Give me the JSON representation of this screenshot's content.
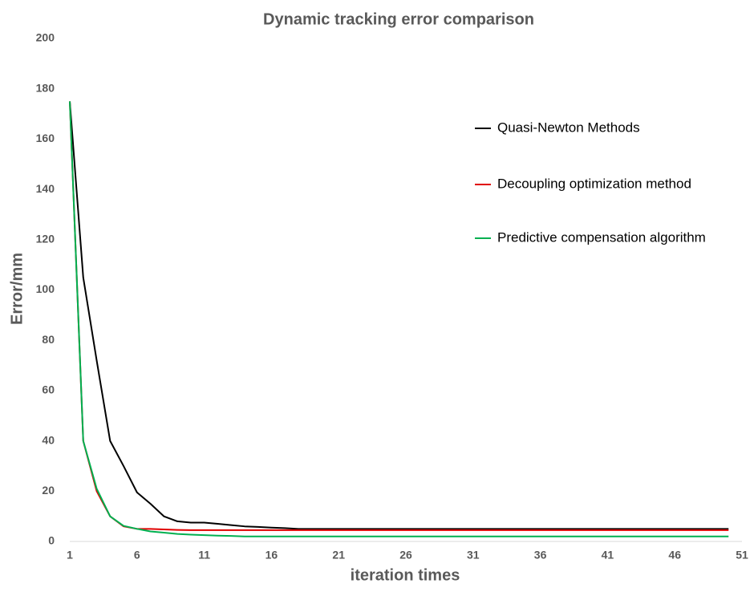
{
  "chart_data": {
    "type": "line",
    "title": "Dynamic tracking error comparison",
    "x_label": "iteration times",
    "y_label": "Error/mm",
    "x": [
      1,
      2,
      3,
      4,
      5,
      6,
      7,
      8,
      9,
      10,
      11,
      12,
      13,
      14,
      15,
      16,
      17,
      18,
      19,
      20,
      21,
      22,
      23,
      24,
      25,
      26,
      27,
      28,
      29,
      30,
      31,
      32,
      33,
      34,
      35,
      36,
      37,
      38,
      39,
      40,
      41,
      42,
      43,
      44,
      45,
      46,
      47,
      48,
      49,
      50
    ],
    "series": [
      {
        "name": "Quasi-Newton Methods",
        "color": "#000000",
        "values": [
          175,
          105,
          72,
          40,
          30,
          19.5,
          15,
          10,
          8,
          7.5,
          7.5,
          7,
          6.5,
          6,
          5.8,
          5.5,
          5.3,
          5,
          5,
          5,
          5,
          5,
          5,
          5,
          5,
          5,
          5,
          5,
          5,
          5,
          5,
          5,
          5,
          5,
          5,
          5,
          5,
          5,
          5,
          5,
          5,
          5,
          5,
          5,
          5,
          5,
          5,
          5,
          5,
          5
        ]
      },
      {
        "name": "Decoupling optimization method",
        "color": "#e00000",
        "values": [
          175,
          40,
          20,
          10,
          6,
          5,
          5,
          4.8,
          4.6,
          4.5,
          4.5,
          4.5,
          4.5,
          4.5,
          4.5,
          4.5,
          4.5,
          4.5,
          4.5,
          4.5,
          4.5,
          4.5,
          4.5,
          4.5,
          4.5,
          4.5,
          4.5,
          4.5,
          4.5,
          4.5,
          4.5,
          4.5,
          4.5,
          4.5,
          4.5,
          4.5,
          4.5,
          4.5,
          4.5,
          4.5,
          4.5,
          4.5,
          4.5,
          4.5,
          4.5,
          4.5,
          4.5,
          4.5,
          4.5,
          4.5
        ]
      },
      {
        "name": "Predictive compensation algorithm",
        "color": "#00b050",
        "values": [
          175,
          40,
          21,
          10,
          6.2,
          5,
          4,
          3.5,
          3,
          2.7,
          2.5,
          2.3,
          2.2,
          2,
          2,
          2,
          2,
          2,
          2,
          2,
          2,
          2,
          2,
          2,
          2,
          2,
          2,
          2,
          2,
          2,
          2,
          2,
          2,
          2,
          2,
          2,
          2,
          2,
          2,
          2,
          2,
          2,
          2,
          2,
          2,
          2,
          2,
          2,
          2,
          2
        ]
      }
    ],
    "xlim": [
      1,
      51
    ],
    "xticks": [
      1,
      6,
      11,
      16,
      21,
      26,
      31,
      36,
      41,
      46,
      51
    ],
    "ylim": [
      0,
      200
    ],
    "yticks": [
      0,
      20,
      40,
      60,
      80,
      100,
      120,
      140,
      160,
      180,
      200
    ],
    "grid": false
  }
}
